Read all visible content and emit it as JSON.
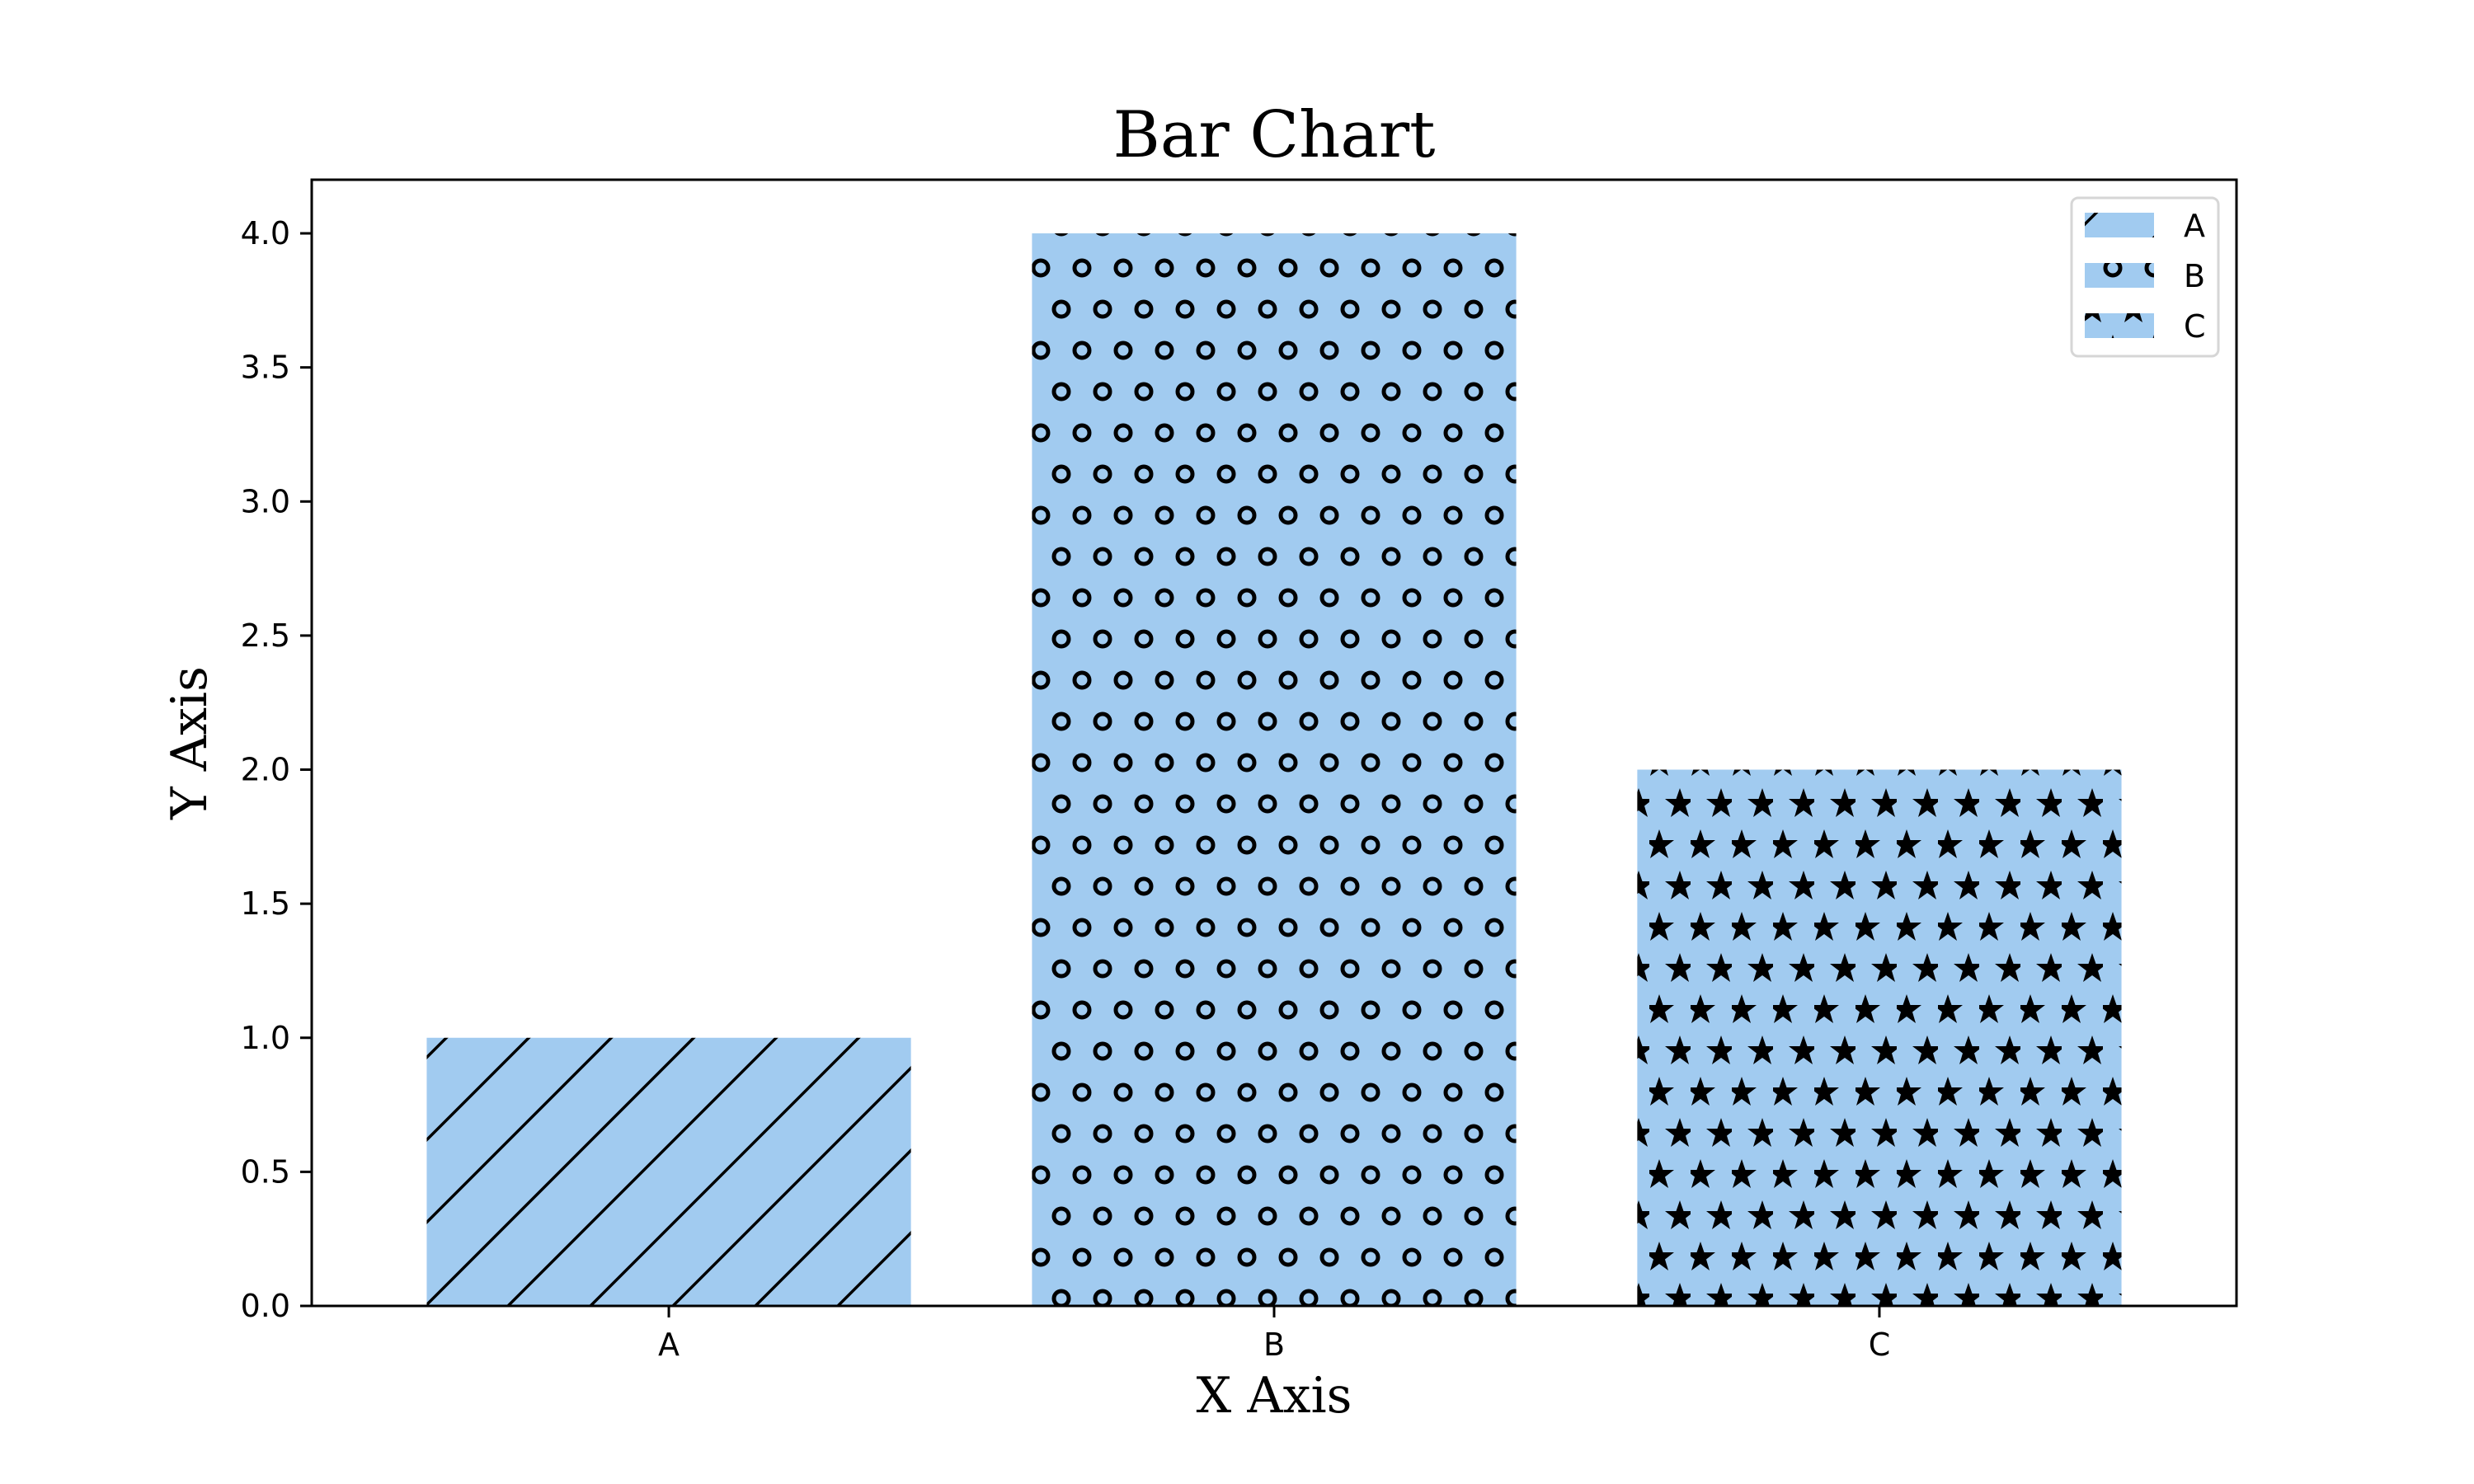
{
  "chart_data": {
    "type": "bar",
    "title": "Bar Chart",
    "xlabel": "X Axis",
    "ylabel": "Y Axis",
    "categories": [
      "A",
      "B",
      "C"
    ],
    "values": [
      1,
      4,
      2
    ],
    "ylim": [
      0,
      4.2
    ],
    "yticks": [
      "0.0",
      "0.5",
      "1.0",
      "1.5",
      "2.0",
      "2.5",
      "3.0",
      "3.5",
      "4.0"
    ],
    "grid": false,
    "bar_color": "#a1cbf0",
    "hatches": [
      "diagonal",
      "circles",
      "stars"
    ],
    "legend": {
      "placement": "top-right",
      "entries": [
        "A",
        "B",
        "C"
      ]
    }
  }
}
